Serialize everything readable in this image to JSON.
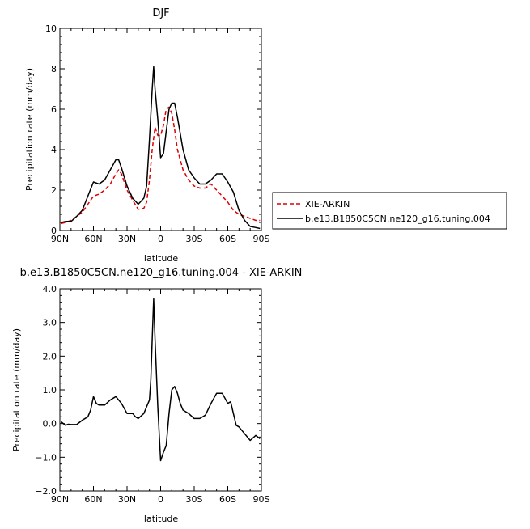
{
  "chart_data": [
    {
      "type": "line",
      "title": "DJF",
      "xlabel": "latitude",
      "ylabel": "Precipitation rate  (mm/day)",
      "xlim": [
        90,
        -90
      ],
      "ylim": [
        0,
        10
      ],
      "x_ticks": [
        90,
        60,
        30,
        0,
        -30,
        -60,
        -90
      ],
      "x_tick_labels": [
        "90N",
        "60N",
        "30N",
        "0",
        "30S",
        "60S",
        "90S"
      ],
      "y_ticks": [
        0,
        2,
        4,
        6,
        8,
        10
      ],
      "y_tick_labels": [
        "0",
        "2",
        "4",
        "6",
        "8",
        "10"
      ],
      "grid": false,
      "legend_position": "right",
      "series": [
        {
          "name": "XIE-ARKIN",
          "color": "#e00000",
          "dash": "dashed",
          "x": [
            88.75,
            85,
            80,
            75,
            70,
            65,
            60,
            55,
            50,
            45,
            40,
            37.5,
            35,
            30,
            25,
            20,
            15,
            12.5,
            10,
            7.5,
            5,
            2.5,
            0,
            -2.5,
            -5,
            -7.5,
            -10,
            -12.5,
            -15,
            -20,
            -25,
            -30,
            -35,
            -40,
            -45,
            -50,
            -55,
            -60,
            -65,
            -70,
            -75,
            -80,
            -85,
            -88.75
          ],
          "y": [
            0.35,
            0.4,
            0.5,
            0.7,
            0.9,
            1.3,
            1.7,
            1.8,
            2.0,
            2.3,
            2.8,
            3.0,
            2.8,
            2.0,
            1.5,
            1.05,
            1.1,
            1.4,
            2.5,
            4.0,
            5.1,
            4.7,
            4.7,
            5.2,
            6.0,
            6.1,
            5.8,
            5.0,
            4.0,
            3.0,
            2.5,
            2.2,
            2.1,
            2.1,
            2.3,
            2.0,
            1.7,
            1.4,
            1.0,
            0.8,
            0.7,
            0.6,
            0.5,
            0.5
          ]
        },
        {
          "name": "b.e13.B1850C5CN.ne120_g16.tuning.004",
          "color": "#000000",
          "dash": "solid",
          "x": [
            88.75,
            85,
            80,
            75,
            70,
            65,
            60,
            55,
            50,
            45,
            40,
            37.5,
            35,
            30,
            25,
            20,
            15,
            12.5,
            10,
            7.5,
            6.25,
            5,
            2.5,
            0,
            -2.5,
            -5,
            -7.5,
            -10,
            -12.5,
            -15,
            -20,
            -25,
            -30,
            -35,
            -40,
            -45,
            -50,
            -55,
            -60,
            -65,
            -70,
            -75,
            -80,
            -85,
            -88.75
          ],
          "y": [
            0.4,
            0.45,
            0.45,
            0.7,
            1.0,
            1.7,
            2.4,
            2.3,
            2.5,
            3.0,
            3.5,
            3.5,
            3.1,
            2.2,
            1.6,
            1.3,
            1.6,
            2.2,
            4.5,
            7.0,
            8.1,
            7.0,
            5.5,
            3.6,
            3.8,
            4.9,
            6.0,
            6.3,
            6.3,
            5.6,
            4.0,
            3.0,
            2.6,
            2.3,
            2.3,
            2.5,
            2.8,
            2.8,
            2.4,
            1.9,
            1.0,
            0.5,
            0.2,
            0.15,
            0.1
          ]
        }
      ]
    },
    {
      "type": "line",
      "title": "b.e13.B1850C5CN.ne120_g16.tuning.004 - XIE-ARKIN",
      "xlabel": "latitude",
      "ylabel": "Precipitation rate  (mm/day)",
      "xlim": [
        90,
        -90
      ],
      "ylim": [
        -2.0,
        4.0
      ],
      "x_ticks": [
        90,
        60,
        30,
        0,
        -30,
        -60,
        -90
      ],
      "x_tick_labels": [
        "90N",
        "60N",
        "30N",
        "0",
        "30S",
        "60S",
        "90S"
      ],
      "y_ticks": [
        -2.0,
        -1.0,
        0.0,
        1.0,
        2.0,
        3.0,
        4.0
      ],
      "y_tick_labels": [
        "−2.0",
        "−1.0",
        "0.0",
        "1.0",
        "2.0",
        "3.0",
        "4.0"
      ],
      "grid": false,
      "series": [
        {
          "color": "#000000",
          "dash": "solid",
          "x": [
            88.75,
            85,
            82.5,
            80,
            75,
            70,
            65,
            62.5,
            60,
            57.5,
            55,
            50,
            45,
            40,
            35,
            30,
            25,
            22.5,
            20,
            15,
            12.5,
            10,
            8.75,
            7.5,
            6.25,
            5,
            2.5,
            0,
            -2.5,
            -5,
            -7.5,
            -10,
            -12.5,
            -15,
            -17.5,
            -20,
            -25,
            -30,
            -35,
            -40,
            -45,
            -50,
            -55,
            -60,
            -62.5,
            -65,
            -67.5,
            -70,
            -75,
            -80,
            -85,
            -88.75
          ],
          "y": [
            0.05,
            -0.05,
            -0.02,
            -0.03,
            -0.03,
            0.1,
            0.2,
            0.4,
            0.8,
            0.6,
            0.55,
            0.55,
            0.7,
            0.8,
            0.6,
            0.3,
            0.3,
            0.2,
            0.15,
            0.3,
            0.5,
            0.7,
            1.3,
            2.5,
            3.7,
            2.5,
            0.5,
            -1.1,
            -0.85,
            -0.65,
            0.3,
            1.0,
            1.1,
            0.9,
            0.6,
            0.4,
            0.3,
            0.15,
            0.15,
            0.25,
            0.6,
            0.9,
            0.9,
            0.6,
            0.65,
            0.3,
            -0.05,
            -0.1,
            -0.3,
            -0.5,
            -0.35,
            -0.45
          ]
        }
      ]
    }
  ]
}
